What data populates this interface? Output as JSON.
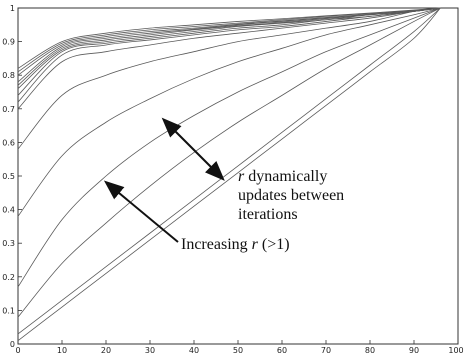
{
  "chart_data": {
    "type": "line",
    "title": "",
    "xlabel": "",
    "ylabel": "",
    "xlim": [
      0,
      100
    ],
    "ylim": [
      0,
      1
    ],
    "grid": false,
    "legend": "none",
    "x_ticks": [
      "0",
      "10",
      "20",
      "30",
      "40",
      "50",
      "60",
      "70",
      "80",
      "90",
      "100"
    ],
    "y_ticks": [
      "0",
      "0.1",
      "0.2",
      "0.3",
      "0.4",
      "0.5",
      "0.6",
      "0.7",
      "0.8",
      "0.9",
      "1"
    ],
    "x": [
      0,
      10,
      20,
      30,
      40,
      50,
      60,
      70,
      80,
      90,
      96
    ],
    "series": [
      {
        "values": [
          0.01,
          0.11,
          0.21,
          0.31,
          0.41,
          0.51,
          0.61,
          0.71,
          0.81,
          0.91,
          1.0
        ]
      },
      {
        "values": [
          0.03,
          0.13,
          0.23,
          0.33,
          0.43,
          0.53,
          0.63,
          0.73,
          0.83,
          0.93,
          1.0
        ]
      },
      {
        "values": [
          0.08,
          0.24,
          0.36,
          0.47,
          0.57,
          0.66,
          0.74,
          0.82,
          0.89,
          0.96,
          1.0
        ]
      },
      {
        "values": [
          0.17,
          0.37,
          0.5,
          0.6,
          0.68,
          0.75,
          0.81,
          0.87,
          0.92,
          0.97,
          1.0
        ]
      },
      {
        "values": [
          0.38,
          0.56,
          0.66,
          0.73,
          0.79,
          0.84,
          0.88,
          0.92,
          0.95,
          0.98,
          1.0
        ]
      },
      {
        "values": [
          0.58,
          0.74,
          0.8,
          0.84,
          0.87,
          0.9,
          0.92,
          0.94,
          0.96,
          0.99,
          1.0
        ]
      },
      {
        "values": [
          0.7,
          0.84,
          0.87,
          0.89,
          0.91,
          0.925,
          0.94,
          0.955,
          0.97,
          0.99,
          1.0
        ]
      },
      {
        "values": [
          0.72,
          0.86,
          0.89,
          0.905,
          0.92,
          0.935,
          0.945,
          0.96,
          0.975,
          0.99,
          1.0
        ]
      },
      {
        "values": [
          0.74,
          0.87,
          0.895,
          0.91,
          0.925,
          0.94,
          0.95,
          0.965,
          0.975,
          0.99,
          1.0
        ]
      },
      {
        "values": [
          0.76,
          0.875,
          0.9,
          0.915,
          0.93,
          0.945,
          0.955,
          0.965,
          0.98,
          0.99,
          1.0
        ]
      },
      {
        "values": [
          0.77,
          0.88,
          0.905,
          0.92,
          0.935,
          0.947,
          0.957,
          0.968,
          0.98,
          0.99,
          1.0
        ]
      },
      {
        "values": [
          0.78,
          0.885,
          0.91,
          0.925,
          0.937,
          0.95,
          0.96,
          0.97,
          0.98,
          0.99,
          1.0
        ]
      },
      {
        "values": [
          0.8,
          0.89,
          0.915,
          0.93,
          0.94,
          0.952,
          0.962,
          0.972,
          0.982,
          0.992,
          1.0
        ]
      },
      {
        "values": [
          0.81,
          0.895,
          0.92,
          0.935,
          0.945,
          0.955,
          0.965,
          0.975,
          0.984,
          0.993,
          1.0
        ]
      },
      {
        "values": [
          0.82,
          0.9,
          0.925,
          0.94,
          0.95,
          0.96,
          0.968,
          0.977,
          0.985,
          0.994,
          1.0
        ]
      }
    ],
    "annotations": [
      {
        "text": "r",
        "from": [
          31,
          0.52
        ],
        "to": [
          18,
          0.58
        ],
        "arrow_both": false
      },
      {
        "text": "",
        "from": [
          42,
          0.61
        ],
        "to": [
          52,
          0.48
        ],
        "arrow_both": true
      },
      {
        "text": "",
        "from": [
          48,
          0.32
        ],
        "to": [
          17,
          0.46
        ],
        "arrow_both": false
      }
    ],
    "text_labels": {
      "dynamic_r": "r",
      "dynamic_line1": " dynamically",
      "dynamic_line2": "updates between",
      "dynamic_line3": "iterations",
      "increasing_prefix": "Increasing ",
      "increasing_r": "r",
      "increasing_suffix": " (>1)"
    }
  }
}
